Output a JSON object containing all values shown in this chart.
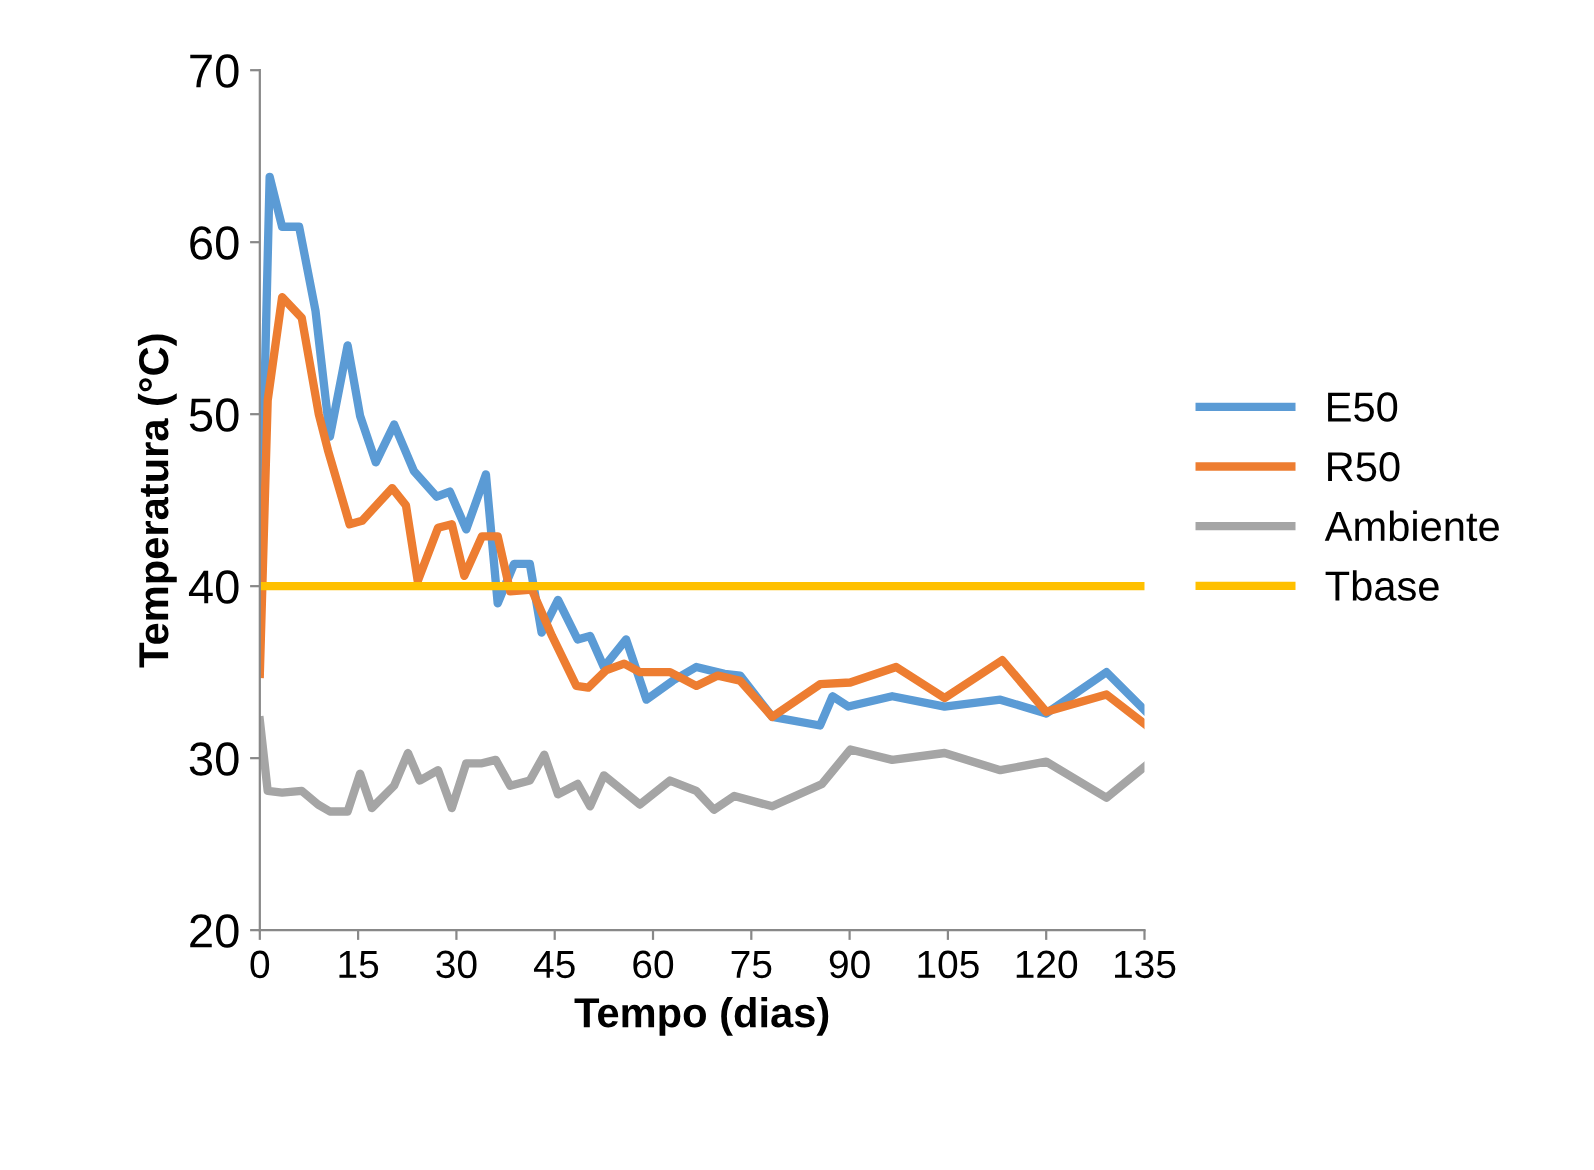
{
  "chart_data": {
    "type": "line",
    "xlabel": "Tempo (dias)",
    "ylabel": "Temperatura (°C)",
    "xlim": [
      0,
      135
    ],
    "xticks": [
      0,
      15,
      30,
      45,
      60,
      75,
      90,
      105,
      120,
      135
    ],
    "ylim": [
      20,
      70
    ],
    "yticks": [
      20,
      30,
      40,
      50,
      60,
      70
    ],
    "grid": false,
    "legend": "right",
    "marker": "none",
    "line_style": "solid",
    "series": [
      {
        "name": "E50",
        "color": "#5b9bd5",
        "x": [
          0,
          1.5,
          3.4,
          6,
          8.5,
          10.7,
          13.4,
          15.3,
          17.7,
          20.5,
          23.5,
          27,
          29,
          31.5,
          34.5,
          36.3,
          38.8,
          41.2,
          43,
          45.5,
          48.5,
          50.4,
          52.5,
          55.9,
          59,
          63,
          66.6,
          70.9,
          73.3,
          78.2,
          85.5,
          87.4,
          89.8,
          96.5,
          104.5,
          113,
          120,
          129.2,
          135
        ],
        "values": [
          40.1,
          63.8,
          60.9,
          60.9,
          56,
          48.7,
          54,
          49.9,
          47.2,
          49.4,
          46.7,
          45.2,
          45.5,
          43.3,
          46.5,
          39,
          41.3,
          41.3,
          37.3,
          39.2,
          36.9,
          37.1,
          35.3,
          36.9,
          33.4,
          34.5,
          35.3,
          34.9,
          34.8,
          32.4,
          31.9,
          33.6,
          33,
          33.6,
          33,
          33.4,
          32.6,
          35,
          32.8
        ]
      },
      {
        "name": "R50",
        "color": "#ed7d31",
        "x": [
          0,
          1.2,
          3.4,
          6.4,
          9,
          10.4,
          13.7,
          15.6,
          20.2,
          22.3,
          24.1,
          27.2,
          29.3,
          31.2,
          33.9,
          36.3,
          38.2,
          41.5,
          44.6,
          48.3,
          50.1,
          52.8,
          55.6,
          58,
          62.6,
          66.6,
          69.9,
          73.3,
          78.2,
          85.5,
          90.1,
          97.1,
          104.5,
          113.3,
          120,
          129.2,
          135
        ],
        "values": [
          34.9,
          50.8,
          56.8,
          55.6,
          50,
          47.9,
          43.6,
          43.8,
          45.7,
          44.7,
          40.3,
          43.4,
          43.6,
          40.6,
          42.9,
          42.9,
          39.7,
          39.8,
          37.1,
          34.2,
          34.1,
          35.1,
          35.5,
          35,
          35,
          34.2,
          34.8,
          34.5,
          32.4,
          34.3,
          34.4,
          35.3,
          33.5,
          35.7,
          32.7,
          33.7,
          32
        ]
      },
      {
        "name": "Ambiente",
        "color": "#a5a5a5",
        "x": [
          0,
          1.2,
          3.4,
          6.4,
          8.9,
          10.7,
          13.4,
          15.3,
          17.1,
          20.5,
          22.6,
          24.4,
          27.2,
          29.3,
          31.5,
          33.9,
          36,
          38.2,
          41.2,
          43.4,
          45.5,
          48.5,
          50.4,
          52.5,
          58,
          62.6,
          66.6,
          69.3,
          72.4,
          78.2,
          85.8,
          90.1,
          96.5,
          104.5,
          113,
          120,
          129.2,
          135
        ],
        "values": [
          32.2,
          28.1,
          28,
          28.1,
          27.3,
          26.9,
          26.9,
          29.1,
          27.1,
          28.4,
          30.3,
          28.7,
          29.3,
          27.1,
          29.7,
          29.7,
          29.9,
          28.4,
          28.7,
          30.2,
          27.9,
          28.5,
          27.2,
          29,
          27.3,
          28.7,
          28.1,
          27,
          27.8,
          27.2,
          28.5,
          30.5,
          29.9,
          30.3,
          29.3,
          29.8,
          27.7,
          29.5
        ]
      },
      {
        "name": "Tbase",
        "color": "#ffc000",
        "x": [
          0,
          135
        ],
        "values": [
          40,
          40
        ]
      }
    ]
  }
}
